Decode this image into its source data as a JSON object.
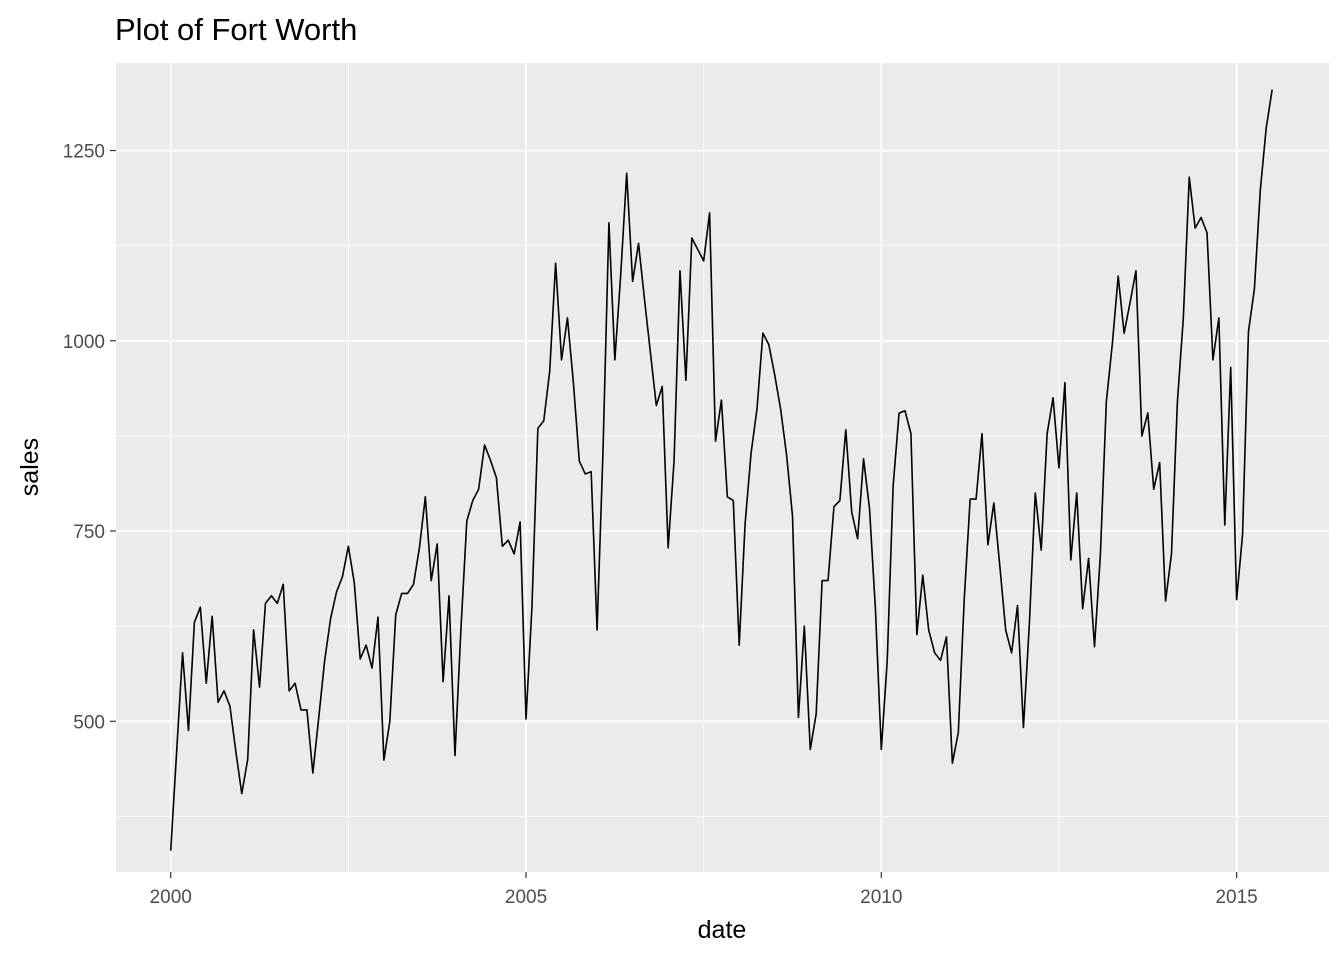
{
  "chart_data": {
    "type": "line",
    "title": "Plot of Fort Worth",
    "xlabel": "date",
    "ylabel": "sales",
    "x_ticks": [
      2000,
      2005,
      2010,
      2015
    ],
    "y_ticks": [
      500,
      750,
      1000,
      1250
    ],
    "xlim": [
      1999.23,
      2016.3
    ],
    "ylim": [
      302,
      1365
    ],
    "grid": true,
    "legend": "none",
    "colors": {
      "panel": "#ebebeb",
      "grid": "#ffffff",
      "line": "#000000",
      "tick": "#333333",
      "tick_label": "#4d4d4d"
    },
    "series": [
      {
        "x_start": 2000.0,
        "x_step_months": 1,
        "values": [
          330,
          460,
          590,
          488,
          630,
          650,
          550,
          638,
          525,
          540,
          520,
          460,
          405,
          450,
          620,
          545,
          655,
          665,
          655,
          680,
          540,
          550,
          515,
          515,
          432,
          505,
          580,
          635,
          670,
          690,
          730,
          682,
          582,
          600,
          570,
          637,
          449,
          500,
          640,
          668,
          668,
          680,
          728,
          795,
          685,
          733,
          552,
          665,
          455,
          620,
          763,
          790,
          805,
          863,
          843,
          820,
          730,
          738,
          720,
          762,
          503,
          650,
          885,
          895,
          960,
          1102,
          975,
          1030,
          945,
          842,
          825,
          828,
          620,
          855,
          1155,
          975,
          1088,
          1220,
          1078,
          1128,
          1055,
          985,
          915,
          940,
          728,
          842,
          1092,
          948,
          1135,
          1120,
          1105,
          1168,
          868,
          922,
          795,
          790,
          600,
          760,
          852,
          910,
          1010,
          995,
          955,
          910,
          850,
          770,
          505,
          625,
          463,
          510,
          685,
          685,
          782,
          790,
          883,
          775,
          740,
          845,
          780,
          648,
          463,
          580,
          810,
          905,
          908,
          878,
          614,
          692,
          620,
          590,
          580,
          611,
          445,
          485,
          660,
          792,
          792,
          878,
          732,
          787,
          705,
          620,
          590,
          652,
          492,
          628,
          800,
          725,
          878,
          925,
          833,
          945,
          712,
          800,
          648,
          714,
          598,
          720,
          920,
          995,
          1085,
          1010,
          1050,
          1092,
          875,
          905,
          805,
          840,
          658,
          720,
          920,
          1030,
          1215,
          1148,
          1162,
          1142,
          975,
          1030,
          758,
          965,
          660,
          745,
          1012,
          1068,
          1198,
          1280,
          1330
        ]
      }
    ]
  }
}
